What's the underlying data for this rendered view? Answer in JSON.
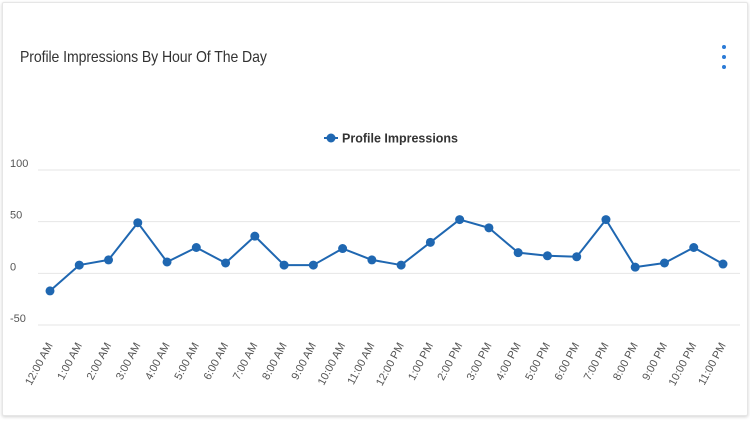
{
  "card": {
    "title": "Profile Impressions By Hour Of The Day"
  },
  "menu": {
    "icon": "more-vertical-icon"
  },
  "colors": {
    "series": "#1f67b1",
    "accent": "#2b7bd6",
    "grid": "#e6e6e6"
  },
  "chart_data": {
    "type": "line",
    "title": "Profile Impressions By Hour Of The Day",
    "xlabel": "",
    "ylabel": "",
    "ylim": [
      -50,
      100
    ],
    "yticks": [
      100,
      50,
      0,
      -50
    ],
    "grid": true,
    "legend": "top-center",
    "categories": [
      "12:00 AM",
      "1:00 AM",
      "2:00 AM",
      "3:00 AM",
      "4:00 AM",
      "5:00 AM",
      "6:00 AM",
      "7:00 AM",
      "8:00 AM",
      "9:00 AM",
      "10:00 AM",
      "11:00 AM",
      "12:00 PM",
      "1:00 PM",
      "2:00 PM",
      "3:00 PM",
      "4:00 PM",
      "5:00 PM",
      "6:00 PM",
      "7:00 PM",
      "8:00 PM",
      "9:00 PM",
      "10:00 PM",
      "11:00 PM"
    ],
    "series": [
      {
        "name": "Profile Impressions",
        "values": [
          -17,
          8,
          13,
          49,
          11,
          25,
          10,
          36,
          8,
          8,
          24,
          13,
          8,
          30,
          52,
          44,
          20,
          17,
          16,
          52,
          6,
          10,
          25,
          9
        ]
      }
    ]
  }
}
